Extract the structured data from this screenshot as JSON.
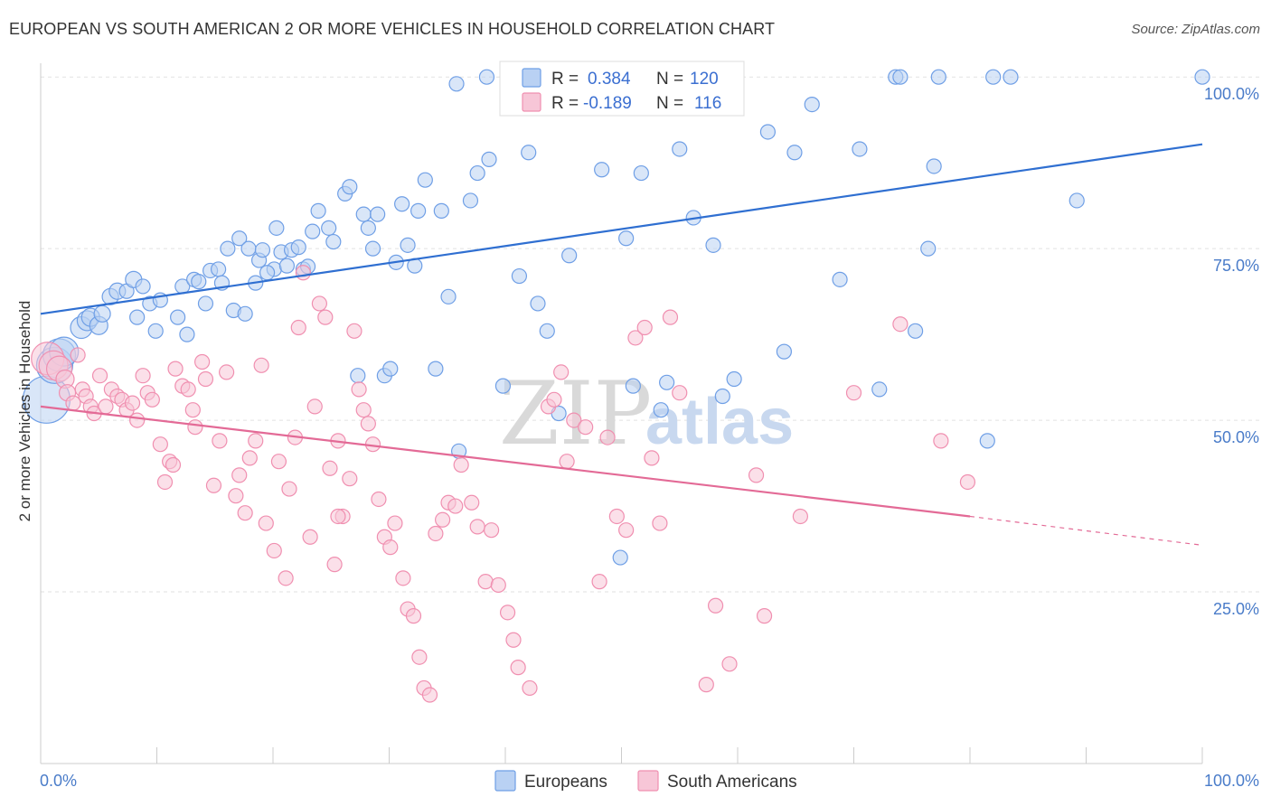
{
  "title": "EUROPEAN VS SOUTH AMERICAN 2 OR MORE VEHICLES IN HOUSEHOLD CORRELATION CHART",
  "source": "Source: ZipAtlas.com",
  "watermark": {
    "zip": "ZIP",
    "atlas": "atlas"
  },
  "stats": {
    "r_label": "R =",
    "n_label": "N =",
    "series": [
      {
        "r": "0.384",
        "n": "120",
        "color": "#6f9fe6",
        "fill": "#b9d1f3"
      },
      {
        "r": "-0.189",
        "n": "116",
        "color": "#f08fb0",
        "fill": "#f7c6d7"
      }
    ]
  },
  "legend": [
    {
      "label": "Europeans",
      "color": "#6f9fe6",
      "fill": "#b9d1f3"
    },
    {
      "label": "South Americans",
      "color": "#f08fb0",
      "fill": "#f7c6d7"
    }
  ],
  "chart_data": {
    "type": "scatter",
    "title": "EUROPEAN VS SOUTH AMERICAN 2 OR MORE VEHICLES IN HOUSEHOLD CORRELATION CHART",
    "ylabel": "2 or more Vehicles in Household",
    "xlim": [
      0,
      100
    ],
    "ylim": [
      0,
      102
    ],
    "x_tick_labels": [
      {
        "v": 0,
        "t": "0.0%"
      },
      {
        "v": 100,
        "t": "100.0%"
      }
    ],
    "y_tick_labels": [
      {
        "v": 25,
        "t": "25.0%"
      },
      {
        "v": 50,
        "t": "50.0%"
      },
      {
        "v": 75,
        "t": "75.0%"
      },
      {
        "v": 100,
        "t": "100.0%"
      }
    ],
    "grid": true,
    "series": [
      {
        "name": "Europeans",
        "color": "#6f9fe6",
        "fill": "#b9d1f3",
        "trend": {
          "x0": 0,
          "y0": 65.5,
          "x1": 100,
          "y1": 90.2
        },
        "points": [
          [
            0.5,
            53,
            26
          ],
          [
            1.2,
            58,
            20
          ],
          [
            1.6,
            59.5,
            18
          ],
          [
            2.0,
            60,
            16
          ],
          [
            3.5,
            63.5,
            12
          ],
          [
            4,
            64.5,
            11
          ],
          [
            4.3,
            65,
            10
          ],
          [
            5,
            63.8,
            10
          ],
          [
            5.3,
            65.5,
            9
          ],
          [
            6,
            68,
            9
          ],
          [
            6.6,
            68.8,
            9
          ],
          [
            7.4,
            68.8,
            8
          ],
          [
            8,
            70.5,
            9
          ],
          [
            8.3,
            65,
            8
          ],
          [
            8.8,
            69.5,
            8
          ],
          [
            9.4,
            67,
            8
          ],
          [
            9.9,
            63,
            8
          ],
          [
            10.3,
            67.5,
            8
          ],
          [
            11.8,
            65,
            8
          ],
          [
            12.2,
            69.5,
            8
          ],
          [
            13.2,
            70.5,
            8
          ],
          [
            13.6,
            70.2,
            8
          ],
          [
            14.2,
            67,
            8
          ],
          [
            14.6,
            71.8,
            8
          ],
          [
            15.3,
            72,
            8
          ],
          [
            15.6,
            70,
            8
          ],
          [
            16.1,
            75,
            8
          ],
          [
            16.6,
            66,
            8
          ],
          [
            17.1,
            76.5,
            8
          ],
          [
            17.6,
            65.5,
            8
          ],
          [
            17.9,
            75,
            8
          ],
          [
            18.5,
            70,
            8
          ],
          [
            18.8,
            73.3,
            8
          ],
          [
            19.1,
            74.8,
            8
          ],
          [
            20.1,
            72,
            8
          ],
          [
            20.3,
            78,
            8
          ],
          [
            20.7,
            74.5,
            8
          ],
          [
            21.2,
            72.5,
            8
          ],
          [
            21.6,
            74.8,
            8
          ],
          [
            22.2,
            75.2,
            8
          ],
          [
            22.6,
            72,
            8
          ],
          [
            23,
            72.4,
            8
          ],
          [
            23.4,
            77.5,
            8
          ],
          [
            23.9,
            80.5,
            8
          ],
          [
            24.8,
            78,
            8
          ],
          [
            25.2,
            76,
            8
          ],
          [
            26.2,
            83,
            8
          ],
          [
            26.6,
            84,
            8
          ],
          [
            27.3,
            56.5,
            8
          ],
          [
            27.8,
            80,
            8
          ],
          [
            28.2,
            78,
            8
          ],
          [
            28.6,
            75,
            8
          ],
          [
            29,
            80,
            8
          ],
          [
            29.6,
            56.5,
            8
          ],
          [
            30.1,
            57.5,
            8
          ],
          [
            30.6,
            73,
            8
          ],
          [
            31.1,
            81.5,
            8
          ],
          [
            31.6,
            75.5,
            8
          ],
          [
            32.2,
            72.5,
            8
          ],
          [
            32.5,
            80.5,
            8
          ],
          [
            33.1,
            85,
            8
          ],
          [
            34,
            57.5,
            8
          ],
          [
            34.5,
            80.5,
            8
          ],
          [
            35.1,
            68,
            8
          ],
          [
            35.8,
            99,
            8
          ],
          [
            36,
            45.5,
            8
          ],
          [
            37,
            82,
            8
          ],
          [
            37.6,
            86,
            8
          ],
          [
            38.6,
            88,
            8
          ],
          [
            39.8,
            55,
            8
          ],
          [
            41.2,
            71,
            8
          ],
          [
            42,
            89,
            8
          ],
          [
            42.8,
            67,
            8
          ],
          [
            43.6,
            63,
            8
          ],
          [
            44.6,
            51,
            8
          ],
          [
            45.5,
            74,
            8
          ],
          [
            47,
            97.5,
            8
          ],
          [
            48.3,
            86.5,
            8
          ],
          [
            49.9,
            30,
            8
          ],
          [
            50.4,
            76.5,
            8
          ],
          [
            51,
            55,
            8
          ],
          [
            51.7,
            86,
            8
          ],
          [
            53.4,
            51.5,
            8
          ],
          [
            53.9,
            55.5,
            8
          ],
          [
            55,
            89.5,
            8
          ],
          [
            56.2,
            79.5,
            8
          ],
          [
            57.1,
            100,
            8
          ],
          [
            57.9,
            75.5,
            8
          ],
          [
            58.7,
            53.5,
            8
          ],
          [
            59.7,
            56,
            8
          ],
          [
            62.6,
            92,
            8
          ],
          [
            64,
            60,
            8
          ],
          [
            64.9,
            89,
            8
          ],
          [
            66.4,
            96,
            8
          ],
          [
            68.8,
            70.5,
            8
          ],
          [
            70.5,
            89.5,
            8
          ],
          [
            72.2,
            54.5,
            8
          ],
          [
            73.6,
            100,
            8
          ],
          [
            74,
            100,
            8
          ],
          [
            75.3,
            63,
            8
          ],
          [
            76.4,
            75,
            8
          ],
          [
            76.9,
            87,
            8
          ],
          [
            77.3,
            100,
            8
          ],
          [
            81.5,
            47,
            8
          ],
          [
            82,
            100,
            8
          ],
          [
            83.5,
            100,
            8
          ],
          [
            89.2,
            82,
            8
          ],
          [
            100,
            100,
            8
          ],
          [
            44.5,
            100,
            8
          ],
          [
            46,
            100,
            8
          ],
          [
            38.4,
            100,
            8
          ],
          [
            40.6,
            100,
            8
          ],
          [
            19.5,
            71.5,
            8
          ],
          [
            12.6,
            62.5,
            8
          ]
        ]
      },
      {
        "name": "South Americans",
        "color": "#f08fb0",
        "fill": "#f7c6d7",
        "trend": {
          "x0": 0,
          "y0": 52.0,
          "x1": 80,
          "y1": 36.0,
          "dash_x1": 100,
          "dash_y1": 31.8
        },
        "points": [
          [
            0.6,
            59,
            18
          ],
          [
            1.1,
            58,
            16
          ],
          [
            1.6,
            57.5,
            14
          ],
          [
            2.1,
            56,
            10
          ],
          [
            2.3,
            54,
            9
          ],
          [
            2.8,
            52.5,
            8
          ],
          [
            3.2,
            59.5,
            8
          ],
          [
            3.6,
            54.5,
            8
          ],
          [
            3.9,
            53.5,
            8
          ],
          [
            4.3,
            52,
            8
          ],
          [
            4.6,
            51,
            8
          ],
          [
            5.1,
            56.5,
            8
          ],
          [
            5.6,
            52,
            8
          ],
          [
            6.1,
            54.5,
            8
          ],
          [
            6.6,
            53.5,
            8
          ],
          [
            7,
            53,
            8
          ],
          [
            7.4,
            51.5,
            8
          ],
          [
            7.9,
            52.5,
            8
          ],
          [
            8.3,
            50,
            8
          ],
          [
            8.8,
            56.5,
            8
          ],
          [
            9.2,
            54,
            8
          ],
          [
            9.6,
            53,
            8
          ],
          [
            10.3,
            46.5,
            8
          ],
          [
            10.7,
            41,
            8
          ],
          [
            11.1,
            44,
            8
          ],
          [
            11.6,
            57.5,
            8
          ],
          [
            12.2,
            55,
            8
          ],
          [
            12.7,
            54.5,
            8
          ],
          [
            13.1,
            51.5,
            8
          ],
          [
            13.3,
            49,
            8
          ],
          [
            13.9,
            58.5,
            8
          ],
          [
            14.2,
            56,
            8
          ],
          [
            14.9,
            40.5,
            8
          ],
          [
            15.4,
            47,
            8
          ],
          [
            16,
            57,
            8
          ],
          [
            16.8,
            39,
            8
          ],
          [
            17.1,
            42,
            8
          ],
          [
            17.6,
            36.5,
            8
          ],
          [
            18,
            44.5,
            8
          ],
          [
            18.5,
            47,
            8
          ],
          [
            19,
            58,
            8
          ],
          [
            19.4,
            35,
            8
          ],
          [
            20.1,
            31,
            8
          ],
          [
            20.5,
            44,
            8
          ],
          [
            21.1,
            27,
            8
          ],
          [
            21.4,
            40,
            8
          ],
          [
            21.9,
            47.5,
            8
          ],
          [
            22.2,
            63.5,
            8
          ],
          [
            22.6,
            71.5,
            8
          ],
          [
            23.2,
            33,
            8
          ],
          [
            23.6,
            52,
            8
          ],
          [
            24,
            67,
            8
          ],
          [
            24.5,
            65,
            8
          ],
          [
            24.9,
            43,
            8
          ],
          [
            25.3,
            29,
            8
          ],
          [
            25.6,
            47,
            8
          ],
          [
            26,
            36,
            8
          ],
          [
            26.6,
            41.5,
            8
          ],
          [
            27,
            63,
            8
          ],
          [
            27.4,
            54.5,
            8
          ],
          [
            27.8,
            51.5,
            8
          ],
          [
            28.2,
            49.5,
            8
          ],
          [
            28.6,
            46.5,
            8
          ],
          [
            29.1,
            38.5,
            8
          ],
          [
            29.6,
            33,
            8
          ],
          [
            30.1,
            31.5,
            8
          ],
          [
            30.5,
            35,
            8
          ],
          [
            31.2,
            27,
            8
          ],
          [
            31.6,
            22.5,
            8
          ],
          [
            32.1,
            21.5,
            8
          ],
          [
            32.6,
            15.5,
            8
          ],
          [
            33,
            11,
            8
          ],
          [
            33.5,
            10,
            8
          ],
          [
            34,
            33.5,
            8
          ],
          [
            34.6,
            35.5,
            8
          ],
          [
            35.1,
            38,
            8
          ],
          [
            35.7,
            37.5,
            8
          ],
          [
            36.2,
            43.5,
            8
          ],
          [
            37.1,
            38,
            8
          ],
          [
            37.6,
            34.5,
            8
          ],
          [
            38.3,
            26.5,
            8
          ],
          [
            38.8,
            34,
            8
          ],
          [
            39.4,
            26,
            8
          ],
          [
            40.2,
            22,
            8
          ],
          [
            40.7,
            18,
            8
          ],
          [
            41.1,
            14,
            8
          ],
          [
            42.1,
            11,
            8
          ],
          [
            43.7,
            52,
            8
          ],
          [
            44.2,
            53,
            8
          ],
          [
            44.8,
            57,
            8
          ],
          [
            45.3,
            44,
            8
          ],
          [
            45.9,
            50,
            8
          ],
          [
            46.9,
            49,
            8
          ],
          [
            48.1,
            26.5,
            8
          ],
          [
            48.8,
            47.5,
            8
          ],
          [
            49.6,
            36,
            8
          ],
          [
            50.4,
            34,
            8
          ],
          [
            51.2,
            62,
            8
          ],
          [
            52,
            63.5,
            8
          ],
          [
            52.6,
            44.5,
            8
          ],
          [
            53.3,
            35,
            8
          ],
          [
            54.2,
            65,
            8
          ],
          [
            55,
            54,
            8
          ],
          [
            57.3,
            11.5,
            8
          ],
          [
            58.1,
            23,
            8
          ],
          [
            59.3,
            14.5,
            8
          ],
          [
            61.6,
            42,
            8
          ],
          [
            62.3,
            21.5,
            8
          ],
          [
            65.4,
            36,
            8
          ],
          [
            70,
            54,
            8
          ],
          [
            74,
            64,
            8
          ],
          [
            77.5,
            47,
            8
          ],
          [
            79.8,
            41,
            8
          ],
          [
            11.4,
            43.5,
            8
          ],
          [
            25.6,
            36,
            8
          ]
        ]
      }
    ]
  }
}
